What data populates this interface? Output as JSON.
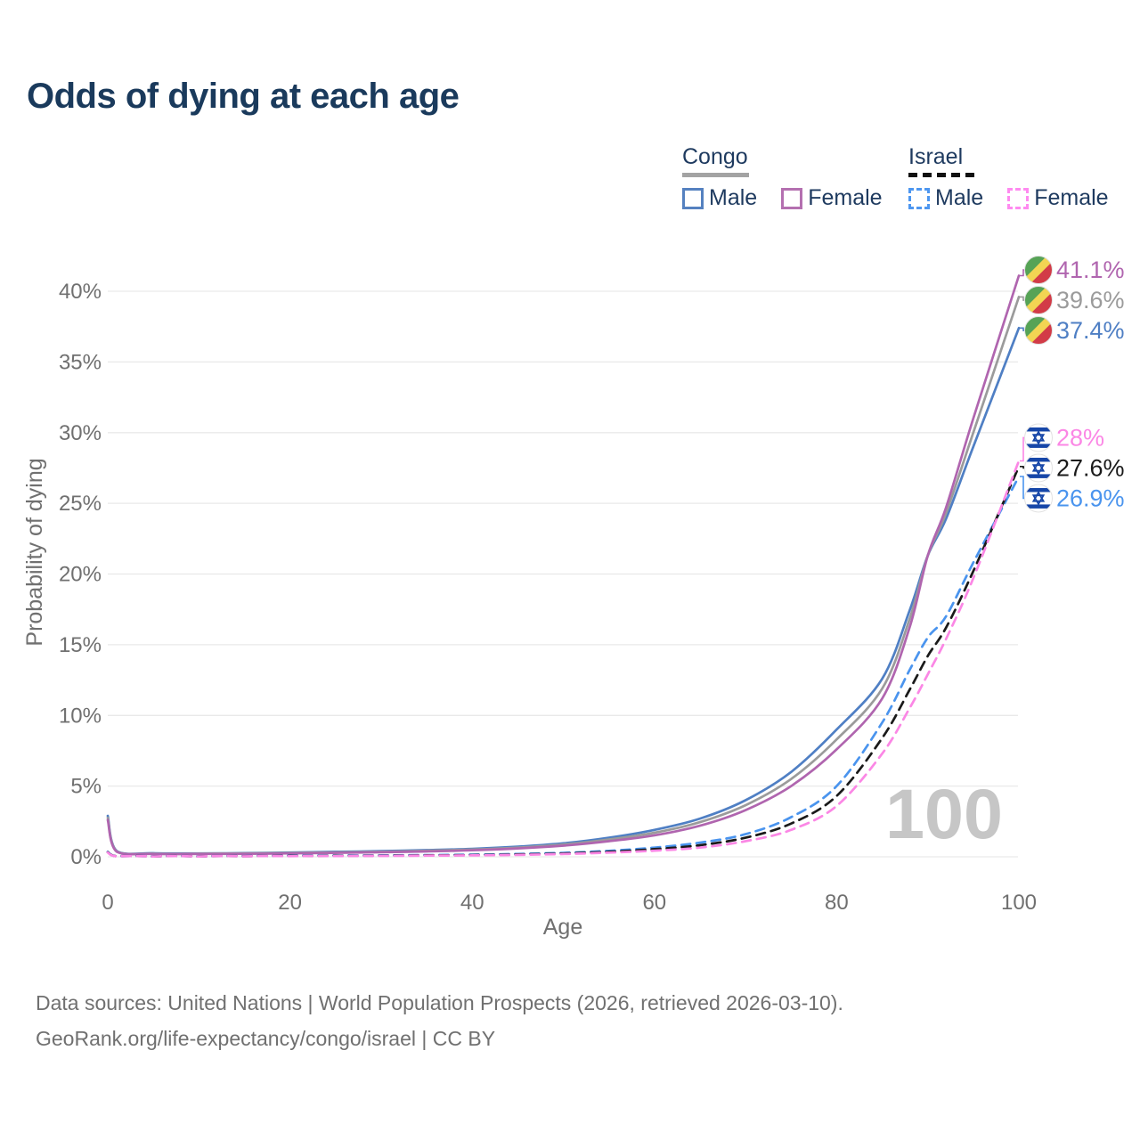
{
  "title": "Odds of dying at each age",
  "watermark": "100",
  "legend": {
    "groups": [
      {
        "name": "Congo",
        "line_style": "solid",
        "underline_color": "#a3a3a3",
        "items": [
          {
            "label": "Male",
            "color": "#5581c0",
            "dashed": false
          },
          {
            "label": "Female",
            "color": "#b470b0",
            "dashed": false
          }
        ]
      },
      {
        "name": "Israel",
        "line_style": "dashed",
        "underline_color": "#111111",
        "items": [
          {
            "label": "Male",
            "color": "#4e97f0",
            "dashed": true
          },
          {
            "label": "Female",
            "color": "#ff8af0",
            "dashed": true
          }
        ]
      }
    ]
  },
  "footer": {
    "line1": "Data sources: United Nations | World Population Prospects (2026, retrieved 2026-03-10).",
    "line2": "GeoRank.org/life-expectancy/congo/israel | CC BY"
  },
  "chart_data": {
    "type": "line",
    "title": "Odds of dying at each age",
    "xlabel": "Age",
    "ylabel": "Probability of dying",
    "xlim": [
      0,
      100
    ],
    "ylim": [
      0,
      42
    ],
    "grid": "horizontal",
    "legend_position": "top-right",
    "x_ticks": {
      "values": [
        0,
        20,
        40,
        60,
        80,
        100
      ],
      "labels": [
        "0",
        "20",
        "40",
        "60",
        "80",
        "100"
      ]
    },
    "y_ticks": {
      "values": [
        0,
        5,
        10,
        15,
        20,
        25,
        30,
        35,
        40
      ],
      "labels": [
        "0%",
        "5%",
        "10%",
        "15%",
        "20%",
        "25%",
        "30%",
        "35%",
        "40%"
      ]
    },
    "ages": [
      0,
      1,
      5,
      10,
      15,
      20,
      25,
      30,
      35,
      40,
      45,
      50,
      55,
      60,
      65,
      70,
      75,
      80,
      85,
      88,
      90,
      92,
      95,
      100
    ],
    "series": [
      {
        "id": "congo-male",
        "name": "Congo Male",
        "group": "Congo",
        "color": "#4f7fc4",
        "dashed": false,
        "flag": "congo",
        "end_label": "37.4%",
        "values": [
          2.9,
          0.4,
          0.25,
          0.24,
          0.26,
          0.3,
          0.35,
          0.4,
          0.47,
          0.56,
          0.72,
          0.95,
          1.35,
          1.9,
          2.7,
          4.0,
          6.0,
          9.0,
          12.6,
          17.4,
          21.3,
          23.9,
          29.0,
          37.4
        ]
      },
      {
        "id": "congo-average",
        "name": "Congo (both sexes)",
        "group": "Congo",
        "color": "#9b9b9b",
        "dashed": false,
        "flag": "congo",
        "end_label": "39.6%",
        "values": [
          2.75,
          0.38,
          0.22,
          0.22,
          0.24,
          0.27,
          0.31,
          0.36,
          0.43,
          0.51,
          0.65,
          0.87,
          1.22,
          1.7,
          2.45,
          3.65,
          5.5,
          8.3,
          11.9,
          16.8,
          21.3,
          24.3,
          30.0,
          39.6
        ]
      },
      {
        "id": "congo-female",
        "name": "Congo Female",
        "group": "Congo",
        "color": "#b065af",
        "dashed": false,
        "flag": "congo",
        "end_label": "41.1%",
        "values": [
          2.6,
          0.35,
          0.2,
          0.2,
          0.21,
          0.24,
          0.28,
          0.32,
          0.38,
          0.46,
          0.59,
          0.79,
          1.1,
          1.52,
          2.2,
          3.3,
          5.0,
          7.6,
          11.2,
          16.2,
          21.3,
          24.7,
          31.0,
          41.1
        ]
      },
      {
        "id": "israel-male",
        "name": "Israel Male",
        "group": "Israel",
        "color": "#4a94ee",
        "dashed": true,
        "flag": "israel",
        "end_label": "26.9%",
        "values": [
          0.35,
          0.04,
          0.03,
          0.03,
          0.05,
          0.08,
          0.09,
          0.1,
          0.12,
          0.15,
          0.2,
          0.28,
          0.42,
          0.65,
          1.0,
          1.6,
          2.8,
          5.0,
          9.5,
          13.2,
          15.5,
          17.0,
          20.8,
          26.9
        ]
      },
      {
        "id": "israel-average",
        "name": "Israel (both sexes)",
        "group": "Israel",
        "color": "#1a1a1a",
        "dashed": true,
        "flag": "israel",
        "end_label": "27.6%",
        "values": [
          0.32,
          0.035,
          0.025,
          0.025,
          0.04,
          0.06,
          0.07,
          0.08,
          0.1,
          0.12,
          0.165,
          0.235,
          0.355,
          0.54,
          0.82,
          1.35,
          2.35,
          4.3,
          8.4,
          11.8,
          14.2,
          16.2,
          20.2,
          27.6
        ]
      },
      {
        "id": "israel-female",
        "name": "Israel Female",
        "group": "Israel",
        "color": "#fb87e5",
        "dashed": true,
        "flag": "israel",
        "end_label": "28%",
        "values": [
          0.3,
          0.03,
          0.02,
          0.02,
          0.03,
          0.045,
          0.05,
          0.06,
          0.08,
          0.1,
          0.135,
          0.195,
          0.295,
          0.43,
          0.65,
          1.1,
          1.9,
          3.6,
          7.3,
          10.5,
          12.9,
          15.4,
          19.7,
          28.0
        ]
      }
    ],
    "flag_colors": {
      "congo": {
        "green": "#56a356",
        "yellow": "#f2d553",
        "red": "#d23b47"
      },
      "israel": {
        "blue": "#1646a8",
        "white": "#ffffff"
      }
    }
  }
}
